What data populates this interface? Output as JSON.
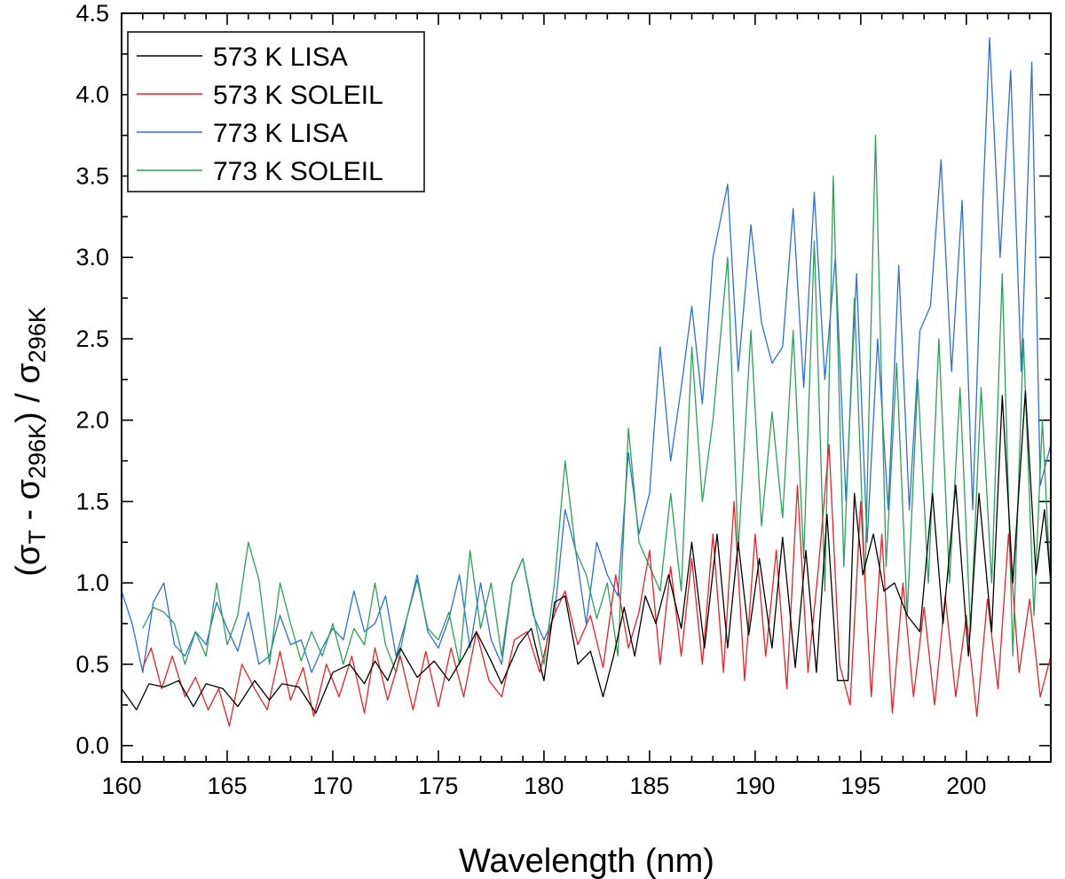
{
  "chart_data": {
    "type": "line",
    "xlabel": "Wavelength (nm)",
    "ylabel": {
      "parts": [
        {
          "t": "(σ",
          "sub": false
        },
        {
          "t": "T",
          "sub": true
        },
        {
          "t": " - σ",
          "sub": false
        },
        {
          "t": "296K",
          "sub": true
        },
        {
          "t": ") / σ",
          "sub": false
        },
        {
          "t": "296K",
          "sub": true
        }
      ]
    },
    "xlim": [
      160,
      204
    ],
    "ylim": [
      -0.1,
      4.5
    ],
    "xticks": [
      160,
      165,
      170,
      175,
      180,
      185,
      190,
      195,
      200
    ],
    "xtick_labels": [
      "160",
      "165",
      "170",
      "175",
      "180",
      "185",
      "190",
      "195",
      "200"
    ],
    "yticks": [
      0.0,
      0.5,
      1.0,
      1.5,
      2.0,
      2.5,
      3.0,
      3.5,
      4.0,
      4.5
    ],
    "ytick_labels": [
      "0.0",
      "0.5",
      "1.0",
      "1.5",
      "2.0",
      "2.5",
      "3.0",
      "3.5",
      "4.0",
      "4.5"
    ],
    "legend_position": "top-left",
    "series": [
      {
        "name": "573 K LISA",
        "color": "#000000",
        "x": [
          160.0,
          160.7,
          161.3,
          162.0,
          162.7,
          163.4,
          164.0,
          164.8,
          165.5,
          166.3,
          167.0,
          167.6,
          168.4,
          169.2,
          170.0,
          170.8,
          171.5,
          172.0,
          172.6,
          173.2,
          174.0,
          174.8,
          175.5,
          176.2,
          176.8,
          177.5,
          178.0,
          178.8,
          179.4,
          180.0,
          180.5,
          181.0,
          181.6,
          182.2,
          182.8,
          183.3,
          183.8,
          184.3,
          184.8,
          185.3,
          185.9,
          186.5,
          187.0,
          187.6,
          188.2,
          188.7,
          189.2,
          189.7,
          190.2,
          190.8,
          191.3,
          191.9,
          192.4,
          192.9,
          193.4,
          193.9,
          194.4,
          194.7,
          195.1,
          195.6,
          196.1,
          196.6,
          197.2,
          197.8,
          198.4,
          198.9,
          199.5,
          200.1,
          200.6,
          201.2,
          201.7,
          202.2,
          202.8,
          203.3,
          203.7,
          204.0
        ],
        "y": [
          0.35,
          0.22,
          0.38,
          0.36,
          0.4,
          0.24,
          0.38,
          0.35,
          0.24,
          0.4,
          0.28,
          0.38,
          0.36,
          0.2,
          0.45,
          0.5,
          0.38,
          0.52,
          0.4,
          0.6,
          0.42,
          0.52,
          0.4,
          0.55,
          0.7,
          0.52,
          0.38,
          0.62,
          0.72,
          0.4,
          0.88,
          0.92,
          0.5,
          0.58,
          0.3,
          0.55,
          0.85,
          0.55,
          0.92,
          0.75,
          1.05,
          0.72,
          1.25,
          0.6,
          1.3,
          0.6,
          1.25,
          0.68,
          1.15,
          0.6,
          1.28,
          0.48,
          1.2,
          0.45,
          1.42,
          0.4,
          0.4,
          1.55,
          1.05,
          1.3,
          0.95,
          1.0,
          0.8,
          0.7,
          1.55,
          0.75,
          1.6,
          0.55,
          1.55,
          0.7,
          2.15,
          1.0,
          2.18,
          1.05,
          1.45,
          1.0
        ]
      },
      {
        "name": "573 K SOLEIL",
        "color": "#e8202a",
        "x": [
          161.0,
          161.4,
          161.9,
          162.4,
          163.0,
          163.5,
          164.1,
          164.6,
          165.1,
          165.7,
          166.3,
          166.9,
          167.5,
          168.0,
          168.6,
          169.1,
          169.7,
          170.3,
          170.9,
          171.5,
          172.0,
          172.6,
          173.2,
          173.8,
          174.4,
          175.0,
          175.6,
          176.2,
          176.8,
          177.4,
          178.0,
          178.6,
          179.2,
          179.8,
          180.4,
          181.0,
          181.6,
          182.2,
          182.8,
          183.4,
          184.0,
          184.5,
          185.0,
          185.5,
          186.0,
          186.5,
          187.0,
          187.5,
          188.0,
          188.5,
          189.0,
          189.5,
          190.0,
          190.5,
          191.0,
          191.5,
          192.0,
          192.5,
          193.0,
          193.5,
          194.0,
          194.5,
          195.0,
          195.5,
          196.0,
          196.5,
          197.0,
          197.5,
          198.0,
          198.5,
          199.0,
          199.5,
          200.0,
          200.5,
          201.0,
          201.5,
          202.0,
          202.5,
          203.0,
          203.5,
          204.0
        ],
        "y": [
          0.48,
          0.6,
          0.35,
          0.55,
          0.3,
          0.42,
          0.22,
          0.35,
          0.12,
          0.5,
          0.35,
          0.22,
          0.58,
          0.28,
          0.48,
          0.18,
          0.5,
          0.3,
          0.55,
          0.2,
          0.6,
          0.28,
          0.55,
          0.22,
          0.58,
          0.24,
          0.6,
          0.3,
          0.7,
          0.4,
          0.3,
          0.65,
          0.7,
          0.45,
          0.78,
          0.95,
          0.62,
          0.8,
          0.48,
          1.05,
          0.6,
          0.82,
          1.2,
          0.5,
          1.1,
          0.55,
          1.15,
          0.5,
          1.3,
          0.45,
          1.5,
          0.4,
          1.3,
          0.55,
          1.2,
          0.35,
          1.6,
          0.45,
          1.1,
          1.85,
          0.5,
          0.25,
          1.5,
          0.3,
          1.3,
          0.2,
          1.0,
          0.3,
          0.85,
          0.25,
          0.92,
          0.3,
          0.8,
          0.18,
          0.9,
          0.35,
          1.3,
          0.45,
          0.9,
          0.3,
          0.55
        ]
      },
      {
        "name": "773 K LISA",
        "color": "#2d6fd6",
        "x": [
          160.0,
          160.5,
          161.0,
          161.5,
          162.0,
          162.5,
          163.0,
          163.5,
          164.0,
          164.5,
          165.0,
          165.5,
          166.0,
          166.5,
          167.0,
          167.5,
          168.0,
          168.5,
          169.0,
          169.5,
          170.0,
          170.5,
          171.0,
          171.5,
          172.0,
          172.5,
          173.0,
          173.5,
          174.0,
          174.5,
          175.0,
          175.5,
          176.0,
          176.5,
          177.0,
          177.5,
          178.0,
          178.5,
          179.0,
          179.5,
          180.0,
          180.5,
          181.0,
          181.5,
          182.0,
          182.5,
          183.0,
          183.5,
          184.0,
          184.5,
          185.0,
          185.5,
          186.0,
          186.5,
          187.0,
          187.5,
          188.0,
          188.7,
          189.2,
          189.8,
          190.3,
          190.8,
          191.3,
          191.8,
          192.3,
          192.8,
          193.3,
          193.8,
          194.3,
          194.8,
          195.3,
          195.8,
          196.3,
          196.8,
          197.3,
          197.8,
          198.3,
          198.8,
          199.3,
          199.8,
          200.3,
          200.8,
          201.1,
          201.6,
          202.1,
          202.6,
          203.1,
          203.5,
          204.0
        ],
        "y": [
          0.95,
          0.75,
          0.45,
          0.88,
          1.0,
          0.62,
          0.55,
          0.7,
          0.62,
          0.88,
          0.72,
          0.58,
          0.82,
          0.5,
          0.55,
          0.8,
          0.62,
          0.65,
          0.45,
          0.6,
          0.72,
          0.65,
          0.95,
          0.7,
          0.75,
          0.92,
          0.55,
          0.78,
          1.05,
          0.7,
          0.6,
          0.78,
          1.05,
          0.6,
          1.0,
          0.65,
          0.5,
          1.0,
          1.15,
          0.8,
          0.65,
          0.8,
          1.45,
          1.2,
          0.75,
          1.25,
          1.05,
          0.92,
          1.8,
          1.3,
          1.55,
          2.45,
          1.75,
          2.2,
          2.7,
          2.1,
          3.0,
          3.45,
          2.3,
          3.2,
          2.6,
          2.35,
          2.45,
          3.3,
          2.2,
          3.4,
          2.25,
          3.0,
          1.5,
          2.9,
          1.25,
          2.5,
          1.45,
          2.95,
          1.45,
          2.55,
          2.7,
          3.6,
          2.3,
          3.35,
          1.45,
          3.4,
          4.35,
          3.0,
          4.15,
          2.3,
          4.2,
          1.6,
          1.85
        ]
      },
      {
        "name": "773 K SOLEIL",
        "color": "#2aa05a",
        "x": [
          161.0,
          161.5,
          162.0,
          162.5,
          163.0,
          163.5,
          164.0,
          164.5,
          165.0,
          165.5,
          166.0,
          166.5,
          167.0,
          167.5,
          168.0,
          168.5,
          169.0,
          169.5,
          170.0,
          170.5,
          171.0,
          171.5,
          172.0,
          172.5,
          173.0,
          173.5,
          174.0,
          174.5,
          175.0,
          175.5,
          176.0,
          176.5,
          177.0,
          177.5,
          178.0,
          178.5,
          179.0,
          179.5,
          180.0,
          180.5,
          181.0,
          181.5,
          182.0,
          182.5,
          183.0,
          183.5,
          184.0,
          184.5,
          185.0,
          185.5,
          186.0,
          186.5,
          187.0,
          187.5,
          188.0,
          188.7,
          189.2,
          189.8,
          190.3,
          190.8,
          191.3,
          191.8,
          192.3,
          192.8,
          193.3,
          193.7,
          194.2,
          194.7,
          195.2,
          195.7,
          196.2,
          196.7,
          197.2,
          197.7,
          198.2,
          198.7,
          199.2,
          199.7,
          200.2,
          200.7,
          201.2,
          201.7,
          202.2,
          202.7,
          203.2,
          203.6,
          204.0
        ],
        "y": [
          0.72,
          0.85,
          0.82,
          0.75,
          0.5,
          0.7,
          0.55,
          1.0,
          0.62,
          0.8,
          1.25,
          1.02,
          0.5,
          1.0,
          0.75,
          0.52,
          0.7,
          0.55,
          0.75,
          0.5,
          0.72,
          0.62,
          1.0,
          0.62,
          0.45,
          0.78,
          1.02,
          0.72,
          0.65,
          0.82,
          0.5,
          1.2,
          0.72,
          1.0,
          0.55,
          1.0,
          1.15,
          0.82,
          0.5,
          1.0,
          1.75,
          1.2,
          1.05,
          0.78,
          1.0,
          0.55,
          1.95,
          1.25,
          1.1,
          0.95,
          1.55,
          0.95,
          2.45,
          1.5,
          2.0,
          3.0,
          1.2,
          2.55,
          1.35,
          2.05,
          1.4,
          2.55,
          1.15,
          3.1,
          0.95,
          3.5,
          1.1,
          2.75,
          1.0,
          3.75,
          1.1,
          2.35,
          0.8,
          2.25,
          1.0,
          2.5,
          1.0,
          2.2,
          0.7,
          2.2,
          1.0,
          2.9,
          0.55,
          2.5,
          0.8,
          2.0,
          0.95
        ]
      }
    ]
  }
}
